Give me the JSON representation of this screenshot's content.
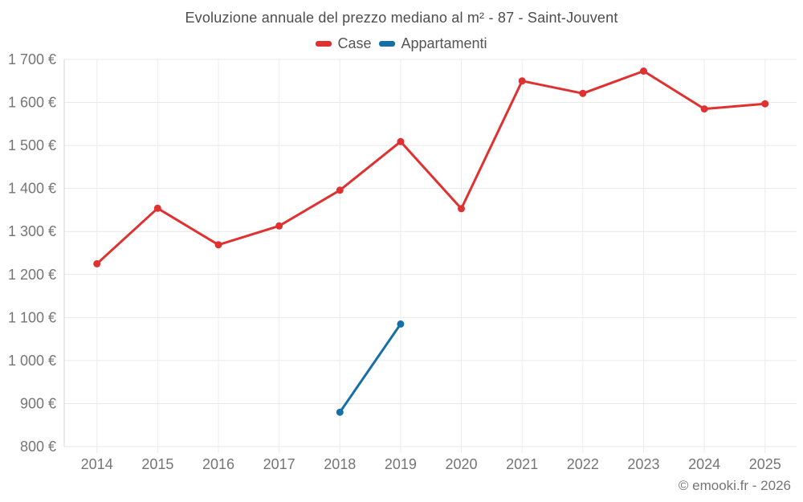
{
  "header": {
    "title": "Evoluzione annuale del prezzo mediano al m² - 87 - Saint-Jouvent"
  },
  "legend": [
    {
      "label": "Case",
      "color": "#e03131"
    },
    {
      "label": "Appartamenti",
      "color": "#1670a8"
    }
  ],
  "footer": {
    "copyright": "© emooki.fr - 2026"
  },
  "chart_data": {
    "type": "line",
    "title": "Evoluzione annuale del prezzo mediano al m² - 87 - Saint-Jouvent",
    "x": [
      "2014",
      "2015",
      "2016",
      "2017",
      "2018",
      "2019",
      "2020",
      "2021",
      "2022",
      "2023",
      "2024",
      "2025"
    ],
    "series": [
      {
        "name": "Case",
        "color": "#e03131",
        "values": [
          1225,
          1354,
          1269,
          1313,
          1396,
          1509,
          1353,
          1650,
          1621,
          1673,
          1585,
          1597
        ]
      },
      {
        "name": "Appartamenti",
        "color": "#1670a8",
        "values": [
          null,
          null,
          null,
          null,
          880,
          1085,
          null,
          null,
          null,
          null,
          null,
          null
        ]
      }
    ],
    "ylabel": "",
    "xlabel": "",
    "ylim": [
      800,
      1700
    ],
    "y_tick_step": 100,
    "y_tick_labels": [
      "800 €",
      "900 €",
      "1 000 €",
      "1 100 €",
      "1 200 €",
      "1 300 €",
      "1 400 €",
      "1 500 €",
      "1 600 €",
      "1 700 €"
    ],
    "grid": true,
    "legend_position": "top"
  }
}
